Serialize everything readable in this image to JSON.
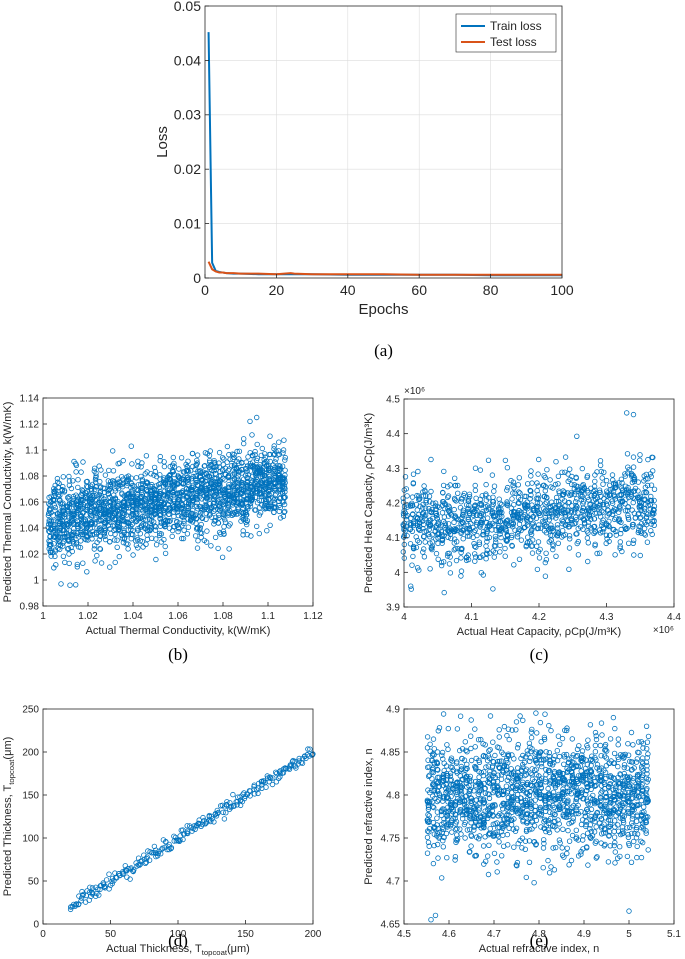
{
  "colors": {
    "train": "#0072BD",
    "test": "#D95319",
    "scatter": "#0072BD",
    "axis": "#262626"
  },
  "chart_data": [
    {
      "id": "a",
      "type": "line",
      "panel_label": "(a)",
      "title": "",
      "xlabel": "Epochs",
      "ylabel": "Loss",
      "xlim": [
        0,
        100
      ],
      "ylim": [
        0,
        0.05
      ],
      "xticks": [
        0,
        20,
        40,
        60,
        80,
        100
      ],
      "xtick_labels": [
        "0",
        "20",
        "40",
        "60",
        "80",
        "100"
      ],
      "yticks": [
        0,
        0.01,
        0.02,
        0.03,
        0.04,
        0.05
      ],
      "ytick_labels": [
        "0",
        "0.01",
        "0.02",
        "0.03",
        "0.04",
        "0.05"
      ],
      "grid": true,
      "legend_position": "top-right",
      "series": [
        {
          "name": "Train loss",
          "color_key": "train",
          "x": [
            1,
            2,
            3,
            4,
            5,
            6,
            8,
            10,
            15,
            20,
            24,
            25,
            30,
            40,
            50,
            60,
            70,
            80,
            90,
            100
          ],
          "y": [
            0.0452,
            0.0028,
            0.0013,
            0.0011,
            0.001,
            0.0009,
            0.0008,
            0.0008,
            0.0007,
            0.0007,
            0.0007,
            0.0007,
            0.0007,
            0.0006,
            0.0006,
            0.0006,
            0.0006,
            0.0005,
            0.0005,
            0.0005
          ]
        },
        {
          "name": "Test loss",
          "color_key": "test",
          "x": [
            1,
            2,
            3,
            4,
            5,
            6,
            8,
            10,
            15,
            20,
            24,
            25,
            30,
            40,
            50,
            60,
            70,
            80,
            90,
            100
          ],
          "y": [
            0.003,
            0.0016,
            0.0012,
            0.001,
            0.001,
            0.0009,
            0.0009,
            0.0008,
            0.0008,
            0.0007,
            0.0009,
            0.0008,
            0.0007,
            0.0007,
            0.0007,
            0.0006,
            0.0006,
            0.0006,
            0.0006,
            0.0006
          ]
        }
      ]
    },
    {
      "id": "b",
      "type": "scatter",
      "panel_label": "(b)",
      "xlabel": "Actual Thermal Conductivity, k(W/mK)",
      "ylabel": "Predicted Thermal Conductivity, k(W/mK)",
      "xlim": [
        1,
        1.12
      ],
      "ylim": [
        0.98,
        1.14
      ],
      "xticks": [
        1,
        1.02,
        1.04,
        1.06,
        1.08,
        1.1,
        1.12
      ],
      "xtick_labels": [
        "1",
        "1.02",
        "1.04",
        "1.06",
        "1.08",
        "1.1",
        "1.12"
      ],
      "yticks": [
        0.98,
        1,
        1.02,
        1.04,
        1.06,
        1.08,
        1.1,
        1.12,
        1.14
      ],
      "ytick_labels": [
        "0.98",
        "1",
        "1.02",
        "1.04",
        "1.06",
        "1.08",
        "1.1",
        "1.12",
        "1.14"
      ],
      "grid": false,
      "cloud": {
        "x_range": [
          1.003,
          1.107
        ],
        "y_center_at_xmin": 1.045,
        "y_center_at_xmax": 1.075,
        "y_spread": 0.02,
        "columns": 52,
        "points_per_column": 38,
        "outliers": [
          [
            1.095,
            1.125
          ],
          [
            1.092,
            1.122
          ],
          [
            1.008,
            0.997
          ],
          [
            1.012,
            0.996
          ]
        ]
      }
    },
    {
      "id": "c",
      "type": "scatter",
      "panel_label": "(c)",
      "xlabel": "Actual Heat Capacity, ρCp(J/m³K)",
      "ylabel": "Predicted Heat Capacity, ρCp(J/m³K)",
      "x_exponent": "×10⁶",
      "y_exponent": "×10⁶",
      "xlim": [
        4.0,
        4.4
      ],
      "ylim": [
        3.9,
        4.5
      ],
      "xticks": [
        4.0,
        4.1,
        4.2,
        4.3,
        4.4
      ],
      "xtick_labels": [
        "4",
        "4.1",
        "4.2",
        "4.3",
        "4.4"
      ],
      "yticks": [
        3.9,
        4.0,
        4.1,
        4.2,
        4.3,
        4.4,
        4.5
      ],
      "ytick_labels": [
        "3.9",
        "4",
        "4.1",
        "4.2",
        "4.3",
        "4.4",
        "4.5"
      ],
      "grid": false,
      "cloud": {
        "x_range": [
          4.002,
          4.368
        ],
        "y_center_at_xmin": 4.13,
        "y_center_at_xmax": 4.2,
        "y_spread": 0.08,
        "columns": 40,
        "points_per_column": 30,
        "outliers": [
          [
            4.33,
            4.46
          ],
          [
            4.34,
            4.455
          ],
          [
            4.01,
            3.96
          ]
        ]
      }
    },
    {
      "id": "d",
      "type": "scatter",
      "panel_label": "(d)",
      "xlabel": "Actual Thickness, T_topcoat(μm)",
      "xlabel_parts": [
        "Actual Thickness, T",
        "topcoat",
        "(μm)"
      ],
      "ylabel": "Predicted Thickness, T_topcoat(μm)",
      "ylabel_parts": [
        "Predicted Thickness, T",
        "topcoat",
        "(μm)"
      ],
      "xlim": [
        0,
        200
      ],
      "ylim": [
        0,
        250
      ],
      "xticks": [
        0,
        50,
        100,
        150,
        200
      ],
      "xtick_labels": [
        "0",
        "50",
        "100",
        "150",
        "200"
      ],
      "yticks": [
        0,
        50,
        100,
        150,
        200,
        250
      ],
      "ytick_labels": [
        "0",
        "50",
        "100",
        "150",
        "200",
        "250"
      ],
      "grid": false,
      "cloud": {
        "x_range": [
          20,
          200
        ],
        "slope": 1.0,
        "intercept": 0,
        "y_spread": 4,
        "points": 260
      }
    },
    {
      "id": "e",
      "type": "scatter",
      "panel_label": "(e)",
      "xlabel": "Actual refractive index, n",
      "ylabel": "Predicted refractive index, n",
      "xlim": [
        4.5,
        5.1
      ],
      "ylim": [
        4.65,
        4.9
      ],
      "xticks": [
        4.5,
        4.6,
        4.7,
        4.8,
        4.9,
        5.0,
        5.1
      ],
      "xtick_labels": [
        "4.5",
        "4.6",
        "4.7",
        "4.8",
        "4.9",
        "5",
        "5.1"
      ],
      "yticks": [
        4.65,
        4.7,
        4.75,
        4.8,
        4.85,
        4.9
      ],
      "ytick_labels": [
        "4.65",
        "4.7",
        "4.75",
        "4.8",
        "4.85",
        "4.9"
      ],
      "grid": false,
      "cloud": {
        "x_range": [
          4.555,
          5.04
        ],
        "y_center_at_xmin": 4.8,
        "y_center_at_xmax": 4.8,
        "y_spread": 0.045,
        "columns": 48,
        "points_per_column": 34,
        "outliers": [
          [
            4.56,
            4.655
          ],
          [
            4.57,
            4.66
          ],
          [
            4.75,
            4.885
          ],
          [
            5.0,
            4.665
          ]
        ]
      }
    }
  ]
}
